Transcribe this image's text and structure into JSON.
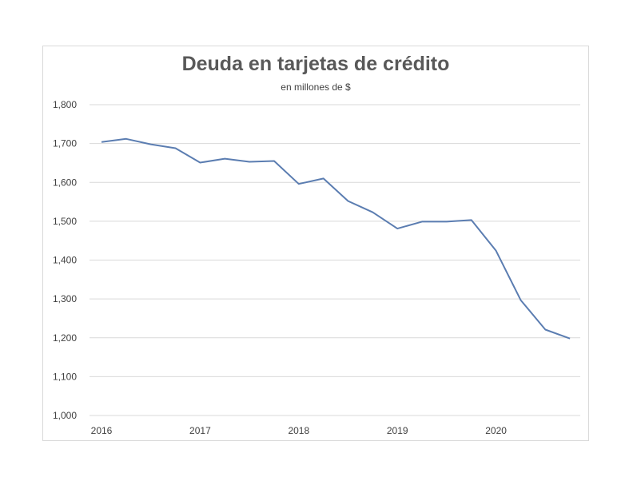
{
  "chart_data": {
    "type": "line",
    "title": "Deuda en tarjetas de crédito",
    "subtitle": "en millones  de $",
    "xlabel": "",
    "ylabel": "",
    "ylim": [
      1000,
      1800
    ],
    "yticks": [
      1000,
      1100,
      1200,
      1300,
      1400,
      1500,
      1600,
      1700,
      1800
    ],
    "ytick_labels": [
      "1,000",
      "1,100",
      "1,200",
      "1,300",
      "1,400",
      "1,500",
      "1,600",
      "1,700",
      "1,800"
    ],
    "xtick_labels": [
      "2016",
      "2017",
      "2018",
      "2019",
      "2020"
    ],
    "grid": "horizontal",
    "legend": "none",
    "series": [
      {
        "color": "#5b7db1",
        "x": [
          "2016-Q1",
          "2016-Q2",
          "2016-Q3",
          "2016-Q4",
          "2017-Q1",
          "2017-Q2",
          "2017-Q3",
          "2017-Q4",
          "2018-Q1",
          "2018-Q2",
          "2018-Q3",
          "2018-Q4",
          "2019-Q1",
          "2019-Q2",
          "2019-Q3",
          "2019-Q4",
          "2020-Q1",
          "2020-Q2",
          "2020-Q3",
          "2020-Q4"
        ],
        "values": [
          1704,
          1712,
          1698,
          1688,
          1651,
          1661,
          1653,
          1655,
          1596,
          1610,
          1552,
          1523,
          1481,
          1499,
          1499,
          1503,
          1424,
          1297,
          1221,
          1198
        ]
      }
    ]
  }
}
